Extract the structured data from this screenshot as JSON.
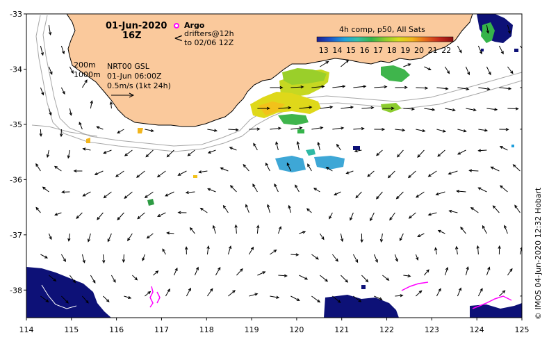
{
  "header": {
    "date": "01-Jun-2020",
    "time": "16Z"
  },
  "legend": {
    "argo_label": "Argo",
    "drifters_line1": "drifters@12h",
    "drifters_line2": "to 02/06 12Z"
  },
  "colorbar": {
    "title": "4h comp, p50, All Sats",
    "ticks": [
      "13",
      "14",
      "15",
      "16",
      "17",
      "18",
      "19",
      "20",
      "21",
      "22"
    ],
    "range": [
      12.5,
      22.5
    ],
    "colors": [
      "#1d1f8f",
      "#1c55c8",
      "#1f9fdc",
      "#35c1a8",
      "#35b44a",
      "#8ccc2e",
      "#d6dc1d",
      "#f2b51c",
      "#e6681c",
      "#c42a1c",
      "#8c0e10"
    ]
  },
  "bathymetry_label": {
    "line1": "200m",
    "line2": "1000m"
  },
  "currents_label": {
    "line1": "NRT00 GSL",
    "line2": "01-Jun 06:00Z",
    "line3": "0.5m/s (1kt 24h)"
  },
  "axes": {
    "lon_ticks": [
      "114",
      "115",
      "116",
      "117",
      "118",
      "119",
      "120",
      "121",
      "122",
      "123",
      "124",
      "125"
    ],
    "lat_ticks": [
      "-33",
      "-34",
      "-35",
      "-36",
      "-37",
      "-38"
    ],
    "lon_range": [
      114,
      125
    ],
    "lat_range": [
      -38.5,
      -33
    ]
  },
  "credit": "© IMOS 04-Jun-2020 12:32 Hobart",
  "colors": {
    "land": "#fac99c",
    "coast": "#000000",
    "bathy": "#a6a6a6",
    "drifter": "#ff00ff",
    "no_data": "#0d1177",
    "frame": "#000000"
  }
}
